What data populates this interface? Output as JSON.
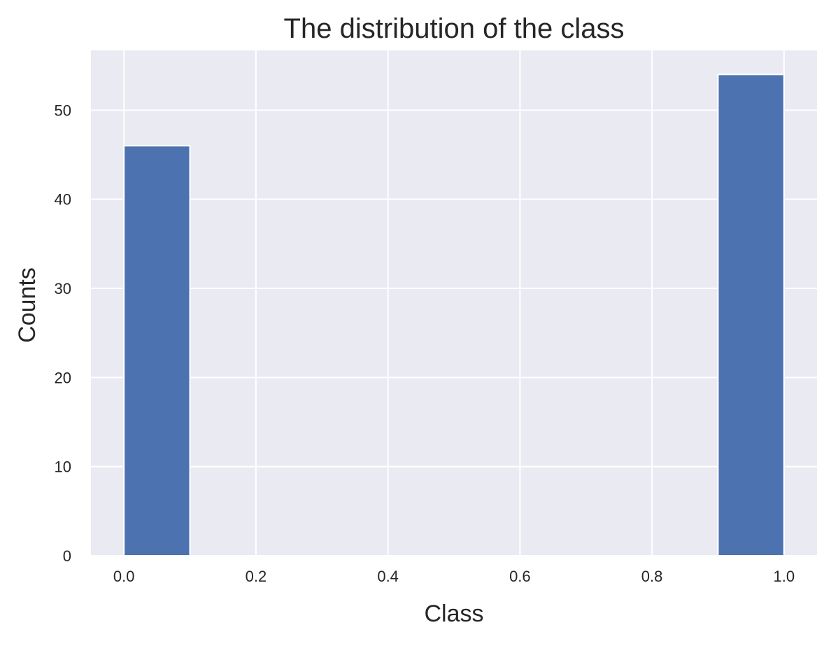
{
  "chart_data": {
    "type": "bar",
    "title": "The distribution of the class",
    "xlabel": "Class",
    "ylabel": "Counts",
    "xlim": [
      -0.05,
      1.05
    ],
    "ylim": [
      0,
      56.7
    ],
    "xticks": [
      0.0,
      0.2,
      0.4,
      0.6,
      0.8,
      1.0
    ],
    "xtick_labels": [
      "0.0",
      "0.2",
      "0.4",
      "0.6",
      "0.8",
      "1.0"
    ],
    "yticks": [
      0,
      10,
      20,
      30,
      40,
      50
    ],
    "ytick_labels": [
      "0",
      "10",
      "20",
      "30",
      "40",
      "50"
    ],
    "bins": [
      {
        "x0": 0.0,
        "x1": 0.1,
        "value": 46
      },
      {
        "x0": 0.1,
        "x1": 0.2,
        "value": 0
      },
      {
        "x0": 0.2,
        "x1": 0.3,
        "value": 0
      },
      {
        "x0": 0.3,
        "x1": 0.4,
        "value": 0
      },
      {
        "x0": 0.4,
        "x1": 0.5,
        "value": 0
      },
      {
        "x0": 0.5,
        "x1": 0.6,
        "value": 0
      },
      {
        "x0": 0.6,
        "x1": 0.7,
        "value": 0
      },
      {
        "x0": 0.7,
        "x1": 0.8,
        "value": 0
      },
      {
        "x0": 0.8,
        "x1": 0.9,
        "value": 0
      },
      {
        "x0": 0.9,
        "x1": 1.0,
        "value": 54
      }
    ],
    "grid": true,
    "background_color": "#eaeaf2",
    "bar_color": "#4c72b0"
  }
}
